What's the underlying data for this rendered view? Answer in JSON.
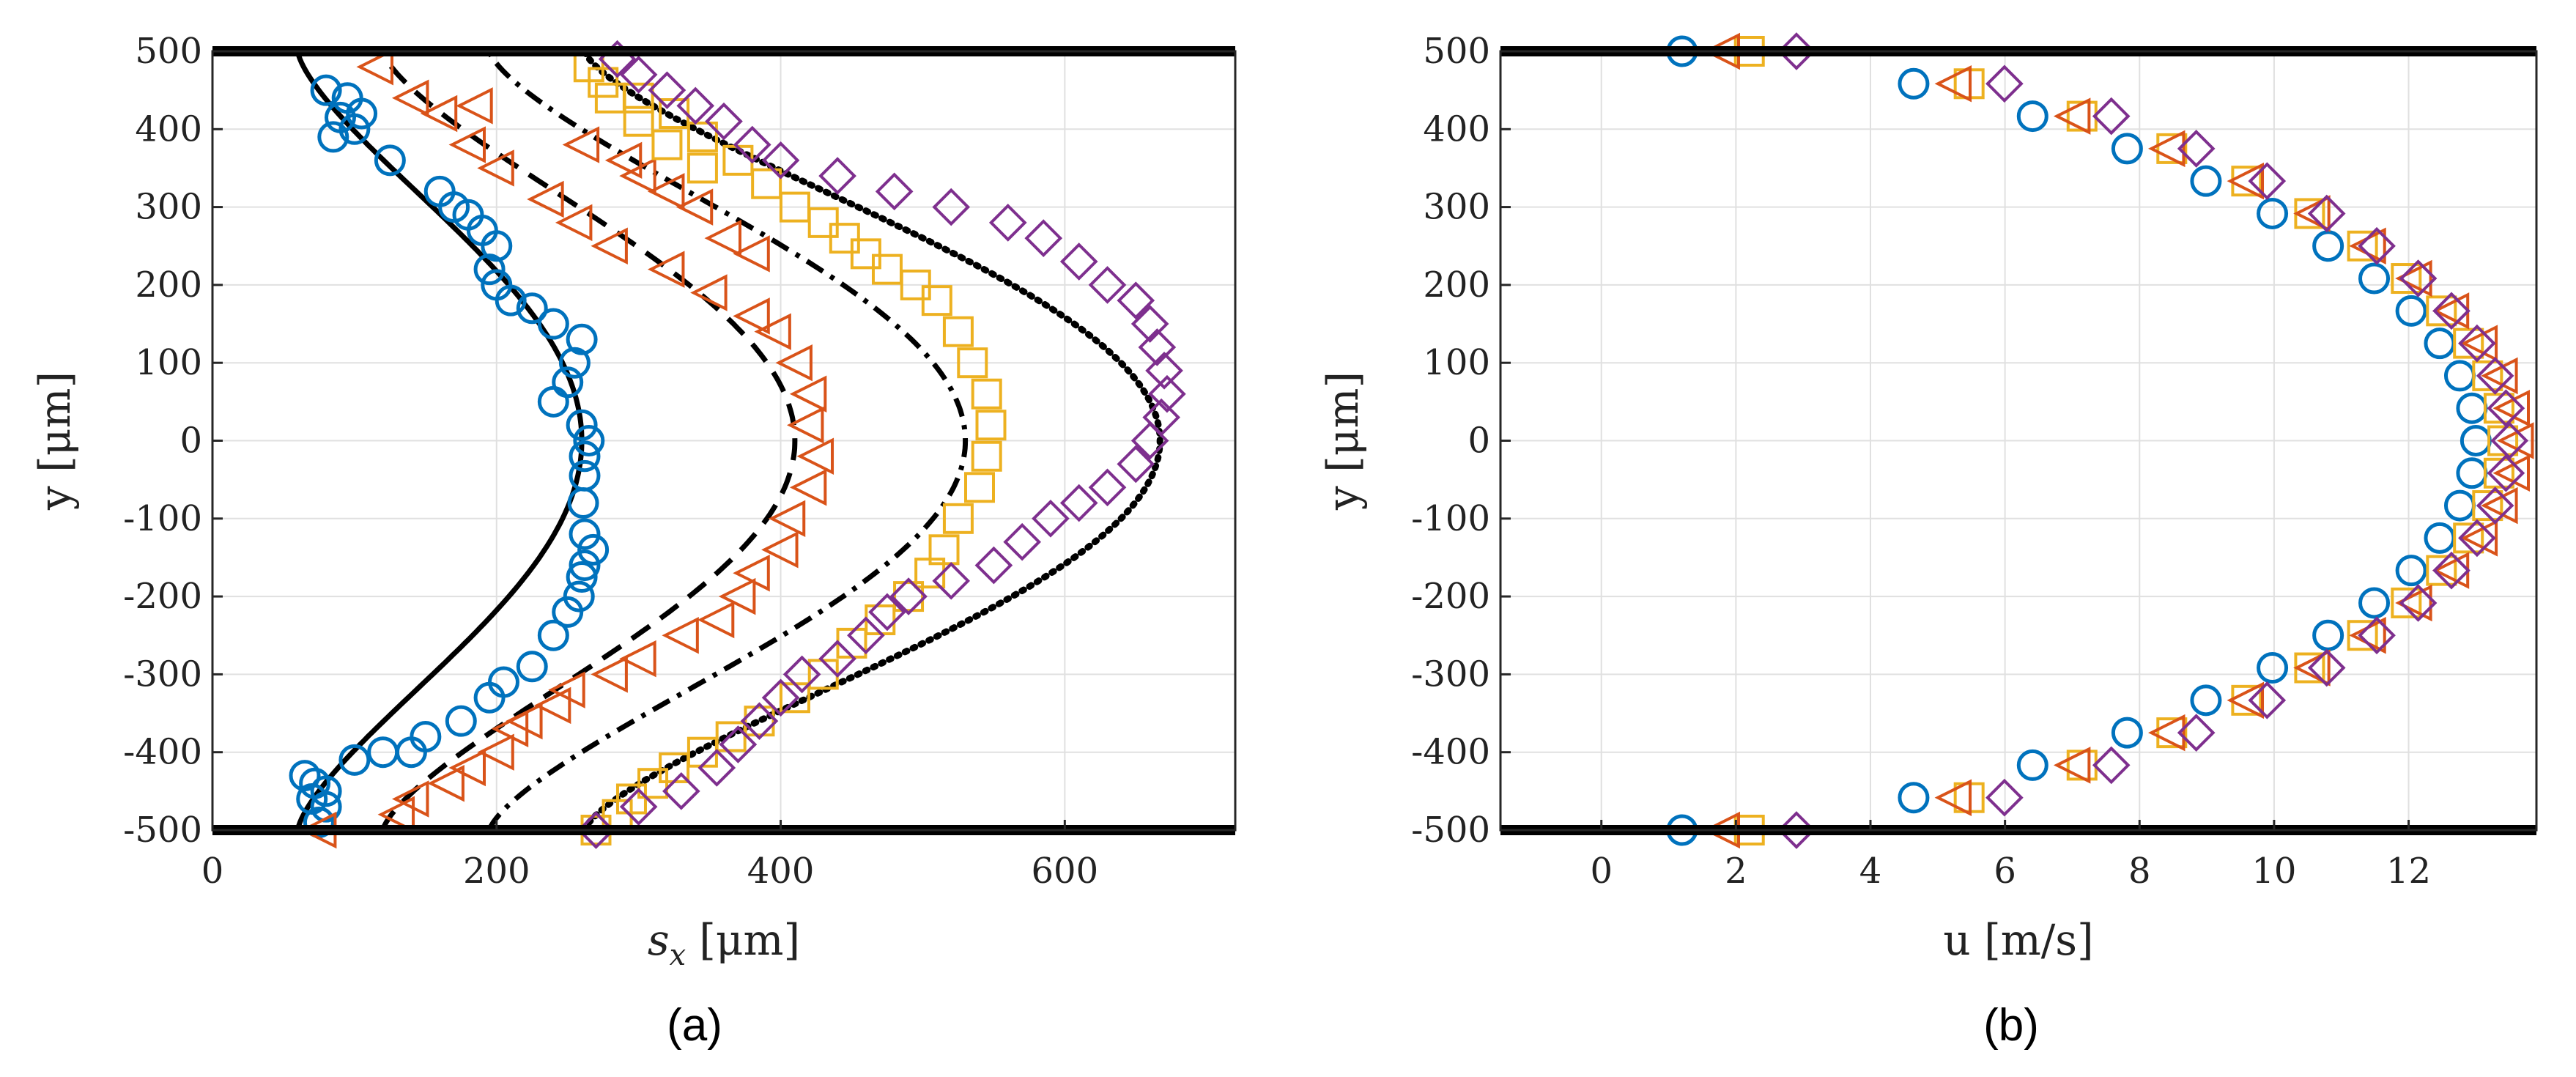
{
  "figure": {
    "panel_a_label": "(a)",
    "panel_b_label": "(b)"
  },
  "colors": {
    "blue": "#0072BD",
    "orange": "#D95319",
    "yellow": "#EDB120",
    "purple": "#7E2F8E",
    "black": "#000000"
  },
  "chart_data": [
    {
      "type": "scatter",
      "title": "",
      "xlabel_main": "s",
      "xlabel_sub": "x",
      "xlabel_unit": "[μm]",
      "ylabel": "y [μm]",
      "xlim": [
        0,
        720
      ],
      "ylim": [
        -500,
        500
      ],
      "xticks": [
        0,
        200,
        400,
        600
      ],
      "yticks": [
        500,
        400,
        300,
        200,
        100,
        0,
        -100,
        -200,
        -300,
        -400,
        -500
      ],
      "grid": true,
      "wall_lines_y": [
        500,
        -500
      ],
      "series": [
        {
          "name": "circles",
          "marker": "circle",
          "color": "blue",
          "x": [
            80,
            95,
            100,
            85,
            90,
            105,
            125,
            160,
            170,
            180,
            190,
            200,
            195,
            200,
            210,
            225,
            240,
            260,
            255,
            250,
            240,
            260,
            265,
            262,
            262,
            261,
            262,
            268,
            262,
            260,
            258,
            250,
            240,
            225,
            205,
            195,
            175,
            150,
            140,
            120,
            100,
            80,
            70,
            65,
            72,
            80,
            75
          ],
          "y": [
            450,
            440,
            400,
            390,
            415,
            420,
            360,
            320,
            300,
            290,
            270,
            250,
            220,
            200,
            180,
            170,
            150,
            130,
            100,
            75,
            50,
            20,
            0,
            -20,
            -45,
            -80,
            -120,
            -140,
            -160,
            -175,
            -200,
            -220,
            -250,
            -290,
            -310,
            -330,
            -360,
            -380,
            -400,
            -400,
            -410,
            -450,
            -460,
            -430,
            -440,
            -470,
            -490
          ]
        },
        {
          "name": "triangles",
          "marker": "triangle-left",
          "color": "orange",
          "x": [
            75,
            130,
            140,
            165,
            180,
            200,
            210,
            220,
            240,
            250,
            280,
            300,
            330,
            355,
            370,
            380,
            400,
            405,
            420,
            425,
            418,
            420,
            410,
            395,
            380,
            350,
            320,
            280,
            255,
            235,
            200,
            180,
            160,
            140,
            115,
            185,
            260,
            290,
            300,
            320,
            340,
            360,
            380
          ],
          "y": [
            -500,
            -480,
            -460,
            -440,
            -420,
            -400,
            -370,
            -360,
            -340,
            -320,
            -300,
            -280,
            -250,
            -230,
            -200,
            -170,
            -140,
            -100,
            -60,
            -20,
            20,
            60,
            100,
            140,
            160,
            190,
            220,
            250,
            280,
            310,
            350,
            380,
            420,
            440,
            480,
            430,
            380,
            360,
            340,
            320,
            300,
            260,
            240
          ],
          "flip_direction": "left"
        },
        {
          "name": "squares",
          "marker": "square",
          "color": "yellow",
          "x": [
            270,
            285,
            295,
            310,
            325,
            345,
            365,
            385,
            410,
            430,
            450,
            470,
            490,
            505,
            515,
            525,
            540,
            545,
            548,
            545,
            535,
            525,
            510,
            495,
            475,
            460,
            445,
            430,
            410,
            390,
            370,
            345,
            325,
            300,
            275,
            265,
            280,
            300,
            320,
            345
          ],
          "y": [
            -500,
            -480,
            -460,
            -440,
            -420,
            -400,
            -380,
            -360,
            -330,
            -300,
            -260,
            -230,
            -200,
            -170,
            -140,
            -100,
            -60,
            -20,
            20,
            60,
            100,
            140,
            180,
            200,
            220,
            240,
            260,
            280,
            300,
            330,
            360,
            390,
            420,
            440,
            460,
            480,
            440,
            410,
            380,
            350
          ]
        },
        {
          "name": "diamonds",
          "marker": "diamond",
          "color": "purple",
          "x": [
            270,
            300,
            330,
            355,
            370,
            385,
            400,
            415,
            440,
            460,
            475,
            490,
            520,
            550,
            570,
            590,
            610,
            630,
            650,
            660,
            668,
            672,
            670,
            665,
            660,
            650,
            630,
            610,
            585,
            560,
            520,
            480,
            440,
            400,
            380,
            360,
            340,
            320,
            300,
            285
          ],
          "y": [
            -500,
            -470,
            -450,
            -420,
            -390,
            -360,
            -330,
            -300,
            -280,
            -250,
            -220,
            -200,
            -180,
            -160,
            -130,
            -100,
            -80,
            -60,
            -30,
            0,
            30,
            60,
            90,
            120,
            150,
            180,
            200,
            230,
            260,
            280,
            300,
            320,
            340,
            360,
            380,
            410,
            430,
            450,
            470,
            490
          ]
        },
        {
          "name": "solid-fit",
          "line": "solid",
          "color": "black",
          "curve_params": {
            "base": 60,
            "amp": 200
          }
        },
        {
          "name": "dashed-fit",
          "line": "dashed",
          "color": "black",
          "curve_params": {
            "base": 120,
            "amp": 290
          }
        },
        {
          "name": "dashdot-fit",
          "line": "dash-dot",
          "color": "black",
          "curve_params": {
            "base": 195,
            "amp": 335
          }
        },
        {
          "name": "dotted-fit",
          "line": "dotted",
          "color": "black",
          "curve_params": {
            "base": 262,
            "amp": 405
          }
        }
      ]
    },
    {
      "type": "scatter",
      "title": "",
      "xlabel": "u [m/s]",
      "ylabel": "y [μm]",
      "xlim": [
        -1.5,
        13.9
      ],
      "ylim": [
        -500,
        500
      ],
      "xticks": [
        0,
        2,
        4,
        6,
        8,
        10,
        12
      ],
      "yticks": [
        500,
        400,
        300,
        200,
        100,
        0,
        -100,
        -200,
        -300,
        -400,
        -500
      ],
      "grid": true,
      "wall_lines_y": [
        500,
        -500
      ],
      "series": [
        {
          "name": "circles",
          "marker": "circle",
          "color": "blue",
          "umax": 13.0,
          "u0": 1.2
        },
        {
          "name": "squares",
          "marker": "square",
          "color": "yellow",
          "umax": 13.4,
          "u0": 2.2
        },
        {
          "name": "triangles",
          "marker": "triangle-left",
          "color": "orange",
          "umax": 13.6,
          "u0": 1.8
        },
        {
          "name": "diamonds",
          "marker": "diamond",
          "color": "purple",
          "umax": 13.5,
          "u0": 2.9
        }
      ]
    }
  ]
}
